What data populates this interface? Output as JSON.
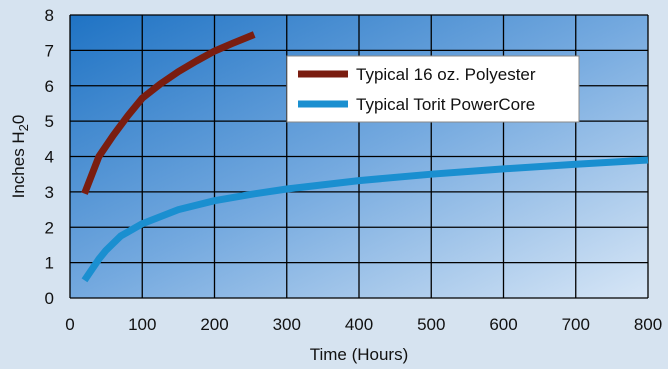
{
  "chart_data": {
    "type": "line",
    "xlabel": "Time (Hours)",
    "ylabel": "Inches H",
    "ylabel_subscript": "2",
    "ylabel_suffix": "0",
    "xlim": [
      0,
      800
    ],
    "ylim": [
      0,
      8
    ],
    "x_ticks": [
      "0",
      "100",
      "200",
      "300",
      "400",
      "500",
      "600",
      "700",
      "800"
    ],
    "y_ticks": [
      "0",
      "1",
      "2",
      "3",
      "4",
      "5",
      "6",
      "7",
      "8"
    ],
    "grid": true,
    "legend_position": "top-right",
    "series": [
      {
        "name": "Typical 16 oz. Polyester",
        "color": "#7a1d10",
        "x": [
          20,
          40,
          60,
          80,
          100,
          125,
          150,
          175,
          200,
          225,
          255
        ],
        "y": [
          2.95,
          4.0,
          4.6,
          5.15,
          5.65,
          6.05,
          6.4,
          6.7,
          6.98,
          7.2,
          7.45
        ]
      },
      {
        "name": "Typical Torit PowerCore",
        "color": "#1a8fd0",
        "x": [
          20,
          30,
          40,
          50,
          70,
          100,
          150,
          200,
          250,
          300,
          400,
          500,
          600,
          700,
          800
        ],
        "y": [
          0.5,
          0.8,
          1.1,
          1.35,
          1.75,
          2.1,
          2.5,
          2.75,
          2.93,
          3.08,
          3.32,
          3.5,
          3.65,
          3.78,
          3.9
        ]
      }
    ]
  }
}
